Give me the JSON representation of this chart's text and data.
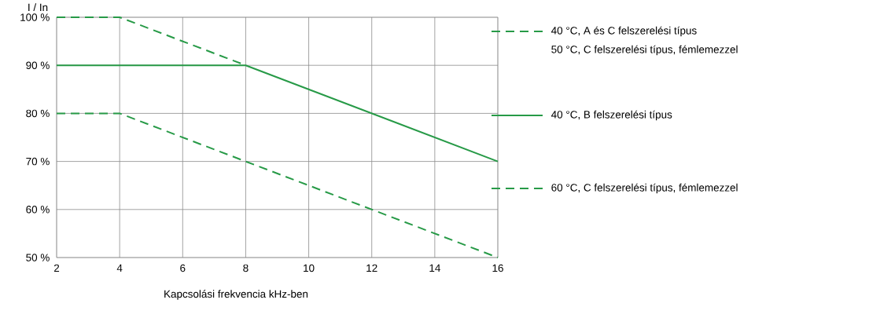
{
  "chart_data": {
    "type": "line",
    "xlabel": "Kapcsolási frekvencia kHz-ben",
    "ylabel": "I / In",
    "xlim": [
      2,
      16
    ],
    "xticks": [
      2,
      4,
      6,
      8,
      10,
      12,
      14,
      16
    ],
    "ylim": [
      50,
      100
    ],
    "yticks": [
      {
        "value": 50,
        "label": "50 %"
      },
      {
        "value": 60,
        "label": "60 %"
      },
      {
        "value": 70,
        "label": "70 %"
      },
      {
        "value": 80,
        "label": "80 %"
      },
      {
        "value": 90,
        "label": "90 %"
      },
      {
        "value": 100,
        "label": "100 %"
      }
    ],
    "grid": true,
    "legend": "right",
    "marker": "none",
    "series": [
      {
        "name": "40 °C, A és C felszerelési típus",
        "color": "#279a47",
        "line_style": "dashed",
        "x": [
          2,
          4,
          8
        ],
        "values": [
          100,
          100,
          90
        ]
      },
      {
        "name": "40 °C, B felszerelési típus",
        "color": "#279a47",
        "line_style": "solid",
        "x": [
          2,
          8,
          16
        ],
        "values": [
          90,
          90,
          70
        ]
      },
      {
        "name": "60 °C, C felszerelési típus, fémlemezzel",
        "color": "#279a47",
        "line_style": "dashed",
        "x": [
          2,
          4,
          16
        ],
        "values": [
          80,
          80,
          50
        ]
      }
    ],
    "annotations": [
      "50 °C, C felszerelési típus, fémlemezzel"
    ]
  }
}
